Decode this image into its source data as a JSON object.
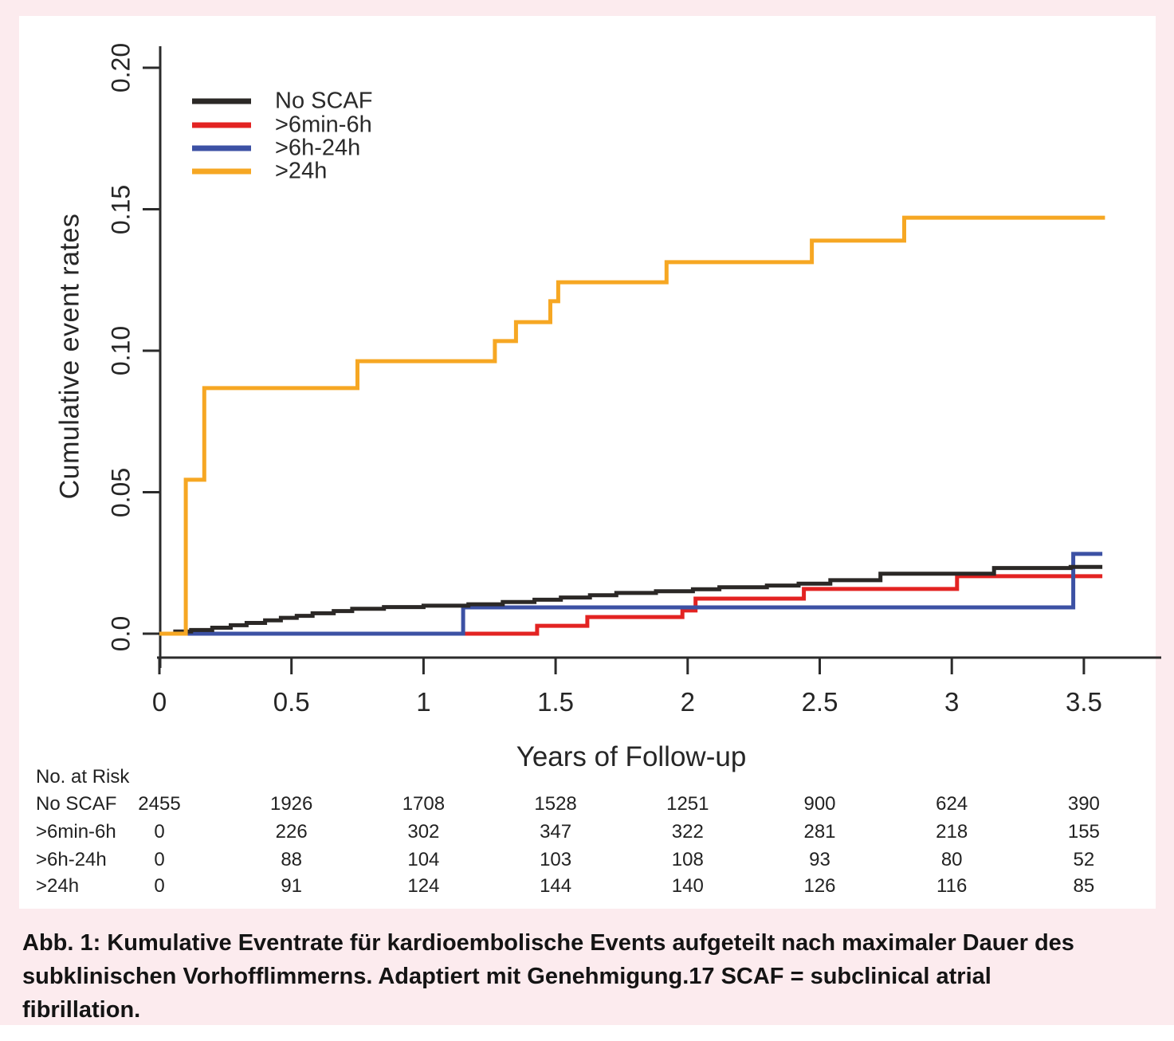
{
  "caption": "Abb. 1: Kumulative Eventrate für kardioembolische Events aufgeteilt nach maximaler Dauer des subklinischen Vorhofflimmerns. Adaptiert mit Genehmigung.17 SCAF = subclinical atrial fibrillation.",
  "colors": {
    "background_pink": "#fcebee",
    "panel_white": "#ffffff",
    "axis": "#2b2b2b",
    "no_scaf": "#2B2826",
    "gt6min_6h": "#E32322",
    "gt6h_24h": "#3C51A4",
    "gt24h": "#F6A723"
  },
  "chart_data": {
    "type": "line",
    "subtype": "kaplan-meier-step",
    "title": "",
    "xlabel": "Years of Follow-up",
    "ylabel": "Cumulative event rates",
    "xlim": [
      0,
      3.6
    ],
    "ylim": [
      0,
      0.2
    ],
    "grid": false,
    "legend_position": "top-left-inside",
    "x_ticks": [
      0,
      0.5,
      1,
      1.5,
      2,
      2.5,
      3,
      3.5
    ],
    "x_tick_labels": [
      "0",
      "0.5",
      "1",
      "1.5",
      "2",
      "2.5",
      "3",
      "3.5"
    ],
    "y_ticks": [
      0,
      0.05,
      0.1,
      0.15,
      0.2
    ],
    "y_tick_labels": [
      "0.0",
      "0.05",
      "0.10",
      "0.15",
      "0.20"
    ],
    "series": [
      {
        "name": "No SCAF",
        "color": "#2B2826",
        "points": [
          [
            0,
            0
          ],
          [
            0.06,
            0.0008
          ],
          [
            0.12,
            0.0013
          ],
          [
            0.2,
            0.0021
          ],
          [
            0.27,
            0.003
          ],
          [
            0.33,
            0.0038
          ],
          [
            0.4,
            0.0047
          ],
          [
            0.46,
            0.0056
          ],
          [
            0.52,
            0.0063
          ],
          [
            0.58,
            0.0072
          ],
          [
            0.66,
            0.008
          ],
          [
            0.73,
            0.0088
          ],
          [
            0.85,
            0.0094
          ],
          [
            1.0,
            0.0099
          ],
          [
            1.17,
            0.0104
          ],
          [
            1.3,
            0.0112
          ],
          [
            1.42,
            0.012
          ],
          [
            1.52,
            0.0128
          ],
          [
            1.63,
            0.0136
          ],
          [
            1.73,
            0.0144
          ],
          [
            1.88,
            0.015
          ],
          [
            2.02,
            0.0157
          ],
          [
            2.12,
            0.0164
          ],
          [
            2.3,
            0.017
          ],
          [
            2.42,
            0.0177
          ],
          [
            2.54,
            0.0189
          ],
          [
            2.73,
            0.0212
          ],
          [
            3.16,
            0.0232
          ],
          [
            3.45,
            0.0236
          ],
          [
            3.57,
            0.0236
          ]
        ]
      },
      {
        "name": ">6min-6h",
        "color": "#E32322",
        "points": [
          [
            0,
            0
          ],
          [
            1.43,
            0.0028
          ],
          [
            1.62,
            0.0059
          ],
          [
            1.98,
            0.0082
          ],
          [
            2.03,
            0.0124
          ],
          [
            2.44,
            0.0158
          ],
          [
            3.02,
            0.0203
          ],
          [
            3.57,
            0.0203
          ]
        ]
      },
      {
        "name": ">6h-24h",
        "color": "#3C51A4",
        "points": [
          [
            0,
            0
          ],
          [
            1.15,
            0.0093
          ],
          [
            3.46,
            0.0282
          ],
          [
            3.57,
            0.0282
          ]
        ]
      },
      {
        "name": ">24h",
        "color": "#F6A723",
        "points": [
          [
            0,
            0
          ],
          [
            0.1,
            0.0544
          ],
          [
            0.17,
            0.0868
          ],
          [
            0.75,
            0.0963
          ],
          [
            1.27,
            0.1034
          ],
          [
            1.35,
            0.1101
          ],
          [
            1.48,
            0.1175
          ],
          [
            1.51,
            0.1242
          ],
          [
            1.92,
            0.1313
          ],
          [
            2.47,
            0.1389
          ],
          [
            2.82,
            0.147
          ],
          [
            3.58,
            0.147
          ]
        ]
      }
    ]
  },
  "risk_table": {
    "title": "No. at Risk",
    "time_points": [
      0,
      0.5,
      1,
      1.5,
      2,
      2.5,
      3,
      3.5
    ],
    "rows": [
      {
        "label": "No SCAF",
        "values": [
          "2455",
          "1926",
          "1708",
          "1528",
          "1251",
          "900",
          "624",
          "390"
        ]
      },
      {
        "label": ">6min-6h",
        "values": [
          "0",
          "226",
          "302",
          "347",
          "322",
          "281",
          "218",
          "155"
        ]
      },
      {
        "label": ">6h-24h",
        "values": [
          "0",
          "88",
          "104",
          "103",
          "108",
          "93",
          "80",
          "52"
        ]
      },
      {
        "label": ">24h",
        "values": [
          "0",
          "91",
          "124",
          "144",
          "140",
          "126",
          "116",
          "85"
        ]
      }
    ]
  }
}
